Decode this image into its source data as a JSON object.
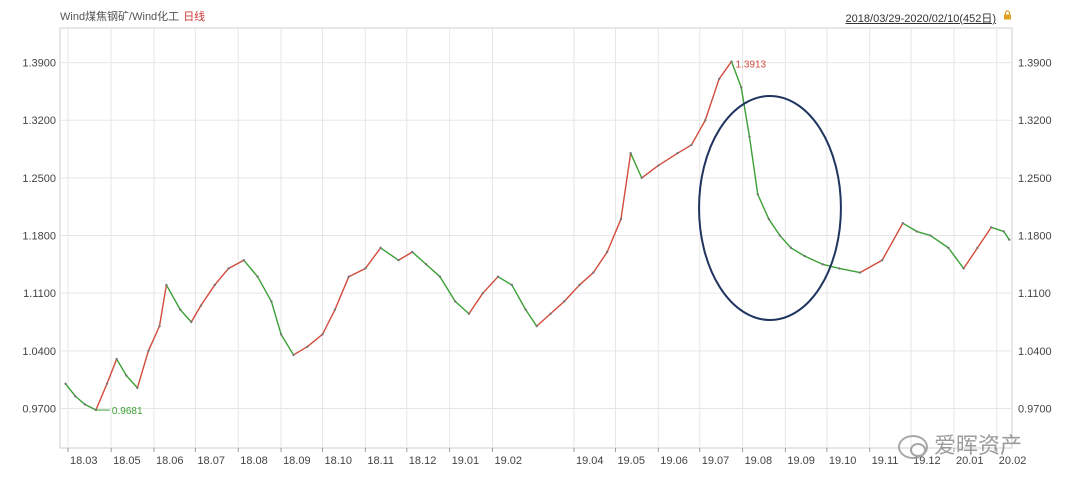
{
  "header": {
    "title": "Wind煤焦钢矿/Wind化工",
    "period": "日线",
    "range": "2018/03/29-2020/02/10(452日)"
  },
  "watermark": "爱晖资产",
  "colors": {
    "up": "#d24b3c",
    "down": "#3aa035",
    "grid": "#e6e6e6",
    "ellipse": "#1f3560"
  },
  "icons": {
    "lock": "lock-icon",
    "watermark": "wechat-icon"
  },
  "chart_data": {
    "type": "line",
    "title": "",
    "xlabel": "",
    "ylabel": "",
    "ylim": [
      0.922,
      1.432
    ],
    "yticks": [
      "1.3900",
      "1.3200",
      "1.2500",
      "1.1800",
      "1.1100",
      "1.0400",
      "0.9700"
    ],
    "grid": true,
    "x_ticks": [
      "18.03",
      "18.05",
      "18.06",
      "18.07",
      "18.08",
      "18.09",
      "18.10",
      "18.11",
      "18.12",
      "19.01",
      "19.02",
      "19.04",
      "19.05",
      "19.06",
      "19.07",
      "19.08",
      "19.09",
      "19.10",
      "19.11",
      "19.12",
      "20.01",
      "20.02"
    ],
    "annotations": [
      {
        "label": "0.9681",
        "type": "min",
        "x": "2018-04-20",
        "value": 0.9681
      },
      {
        "label": "1.3913",
        "type": "max",
        "x": "2019-07-24",
        "value": 1.3913
      }
    ],
    "highlight": {
      "shape": "ellipse",
      "from": "2019-07-28",
      "to": "2019-09-05"
    },
    "series": [
      {
        "values": [
          [
            "2018-03-29",
            1.0
          ],
          [
            "2018-04-05",
            0.985
          ],
          [
            "2018-04-12",
            0.975
          ],
          [
            "2018-04-20",
            0.9681
          ],
          [
            "2018-04-28",
            1.0
          ],
          [
            "2018-05-05",
            1.03
          ],
          [
            "2018-05-12",
            1.01
          ],
          [
            "2018-05-20",
            0.995
          ],
          [
            "2018-05-28",
            1.04
          ],
          [
            "2018-06-05",
            1.07
          ],
          [
            "2018-06-10",
            1.12
          ],
          [
            "2018-06-20",
            1.09
          ],
          [
            "2018-06-28",
            1.075
          ],
          [
            "2018-07-05",
            1.095
          ],
          [
            "2018-07-15",
            1.12
          ],
          [
            "2018-07-25",
            1.14
          ],
          [
            "2018-08-05",
            1.15
          ],
          [
            "2018-08-15",
            1.13
          ],
          [
            "2018-08-25",
            1.1
          ],
          [
            "2018-09-01",
            1.06
          ],
          [
            "2018-09-10",
            1.035
          ],
          [
            "2018-09-20",
            1.045
          ],
          [
            "2018-10-01",
            1.06
          ],
          [
            "2018-10-10",
            1.09
          ],
          [
            "2018-10-20",
            1.13
          ],
          [
            "2018-11-01",
            1.14
          ],
          [
            "2018-11-12",
            1.165
          ],
          [
            "2018-11-25",
            1.15
          ],
          [
            "2018-12-05",
            1.16
          ],
          [
            "2018-12-15",
            1.145
          ],
          [
            "2018-12-25",
            1.13
          ],
          [
            "2019-01-05",
            1.1
          ],
          [
            "2019-01-15",
            1.085
          ],
          [
            "2019-01-25",
            1.11
          ],
          [
            "2019-02-05",
            1.13
          ],
          [
            "2019-02-15",
            1.12
          ],
          [
            "2019-02-25",
            1.09
          ],
          [
            "2019-03-05",
            1.07
          ],
          [
            "2019-03-15",
            1.085
          ],
          [
            "2019-03-25",
            1.1
          ],
          [
            "2019-04-05",
            1.12
          ],
          [
            "2019-04-15",
            1.135
          ],
          [
            "2019-04-25",
            1.16
          ],
          [
            "2019-05-05",
            1.2
          ],
          [
            "2019-05-12",
            1.28
          ],
          [
            "2019-05-20",
            1.25
          ],
          [
            "2019-06-01",
            1.265
          ],
          [
            "2019-06-15",
            1.28
          ],
          [
            "2019-06-25",
            1.29
          ],
          [
            "2019-07-05",
            1.32
          ],
          [
            "2019-07-15",
            1.37
          ],
          [
            "2019-07-24",
            1.3913
          ],
          [
            "2019-07-31",
            1.36
          ],
          [
            "2019-08-06",
            1.3
          ],
          [
            "2019-08-12",
            1.23
          ],
          [
            "2019-08-20",
            1.2
          ],
          [
            "2019-08-28",
            1.18
          ],
          [
            "2019-09-05",
            1.165
          ],
          [
            "2019-09-15",
            1.155
          ],
          [
            "2019-09-28",
            1.145
          ],
          [
            "2019-10-10",
            1.14
          ],
          [
            "2019-10-25",
            1.135
          ],
          [
            "2019-11-10",
            1.15
          ],
          [
            "2019-11-25",
            1.195
          ],
          [
            "2019-12-05",
            1.185
          ],
          [
            "2019-12-15",
            1.18
          ],
          [
            "2019-12-28",
            1.165
          ],
          [
            "2020-01-08",
            1.14
          ],
          [
            "2020-01-18",
            1.165
          ],
          [
            "2020-01-28",
            1.19
          ],
          [
            "2020-02-06",
            1.185
          ],
          [
            "2020-02-10",
            1.175
          ]
        ]
      }
    ]
  }
}
